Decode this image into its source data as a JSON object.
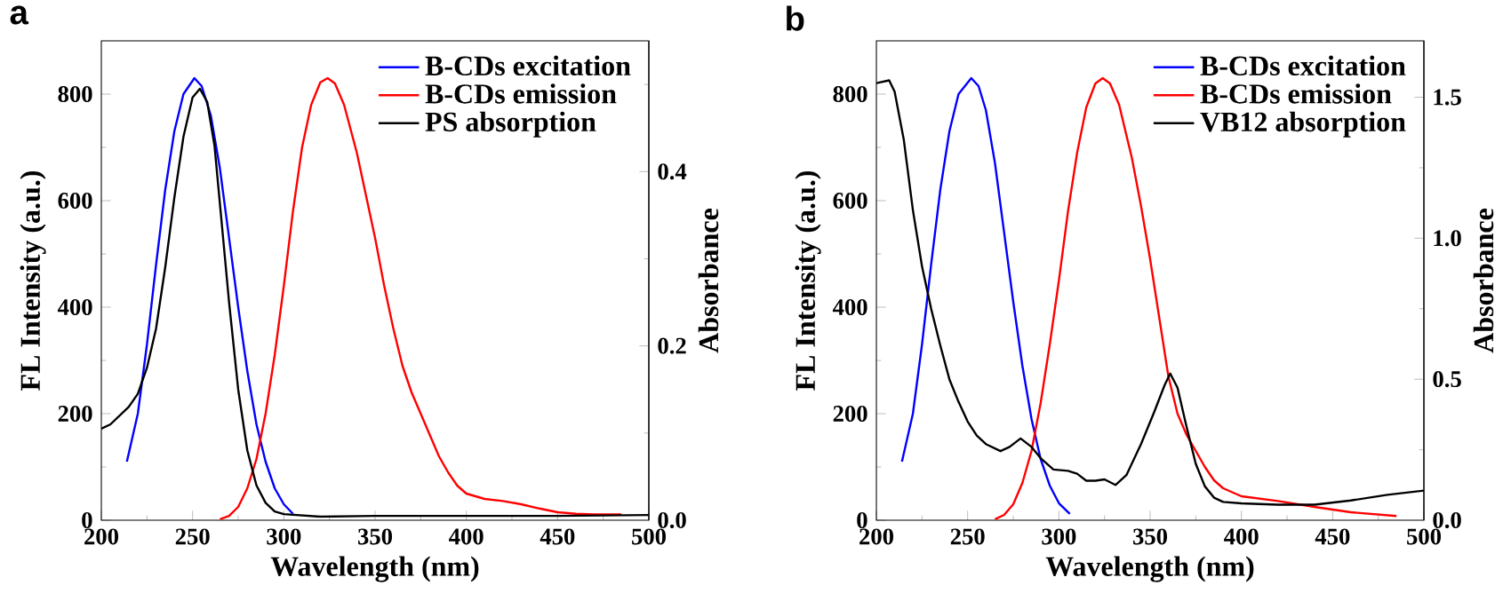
{
  "chart_data": [
    {
      "type": "line",
      "title": "a",
      "xlabel": "Wavelength (nm)",
      "ylabel": "FL Intensity (a.u.)",
      "y2label": "Absorbance",
      "legend": "top right",
      "xlim": [
        200,
        500
      ],
      "xticks": [
        200,
        {
          "value": 225,
          "label": null
        },
        250,
        {
          "value": 275,
          "label": null
        },
        300,
        {
          "value": 325,
          "label": null
        },
        350,
        {
          "value": 375,
          "label": null
        },
        400,
        {
          "value": 425,
          "label": null
        },
        450,
        {
          "value": 475,
          "label": null
        },
        500
      ],
      "ylim": [
        0,
        900
      ],
      "yticks": [
        0,
        {
          "value": 100,
          "label": null
        },
        200,
        {
          "value": 300,
          "label": null
        },
        400,
        {
          "value": 500,
          "label": null
        },
        600,
        {
          "value": 700,
          "label": null
        },
        800
      ],
      "y2lim": [
        0,
        0.55
      ],
      "y2ticks": [
        {
          "value": 0,
          "label": "0.0"
        },
        {
          "value": 0.1,
          "label": null
        },
        {
          "value": 0.2,
          "label": "0.2"
        },
        {
          "value": 0.3,
          "label": null
        },
        {
          "value": 0.4,
          "label": "0.4"
        },
        {
          "value": 0.5,
          "label": null
        }
      ],
      "series": [
        {
          "name": "B-CDs excitation",
          "color": "#0000ff",
          "x": [
            214,
            220,
            225,
            230,
            235,
            240,
            245,
            251,
            255,
            260,
            265,
            270,
            275,
            280,
            285,
            290,
            295,
            300,
            305
          ],
          "values": [
            110,
            200,
            330,
            480,
            620,
            730,
            800,
            830,
            815,
            760,
            660,
            530,
            400,
            280,
            180,
            110,
            60,
            30,
            12
          ]
        },
        {
          "name": "B-CDs emission",
          "color": "#ff0000",
          "x": [
            265,
            270,
            275,
            280,
            285,
            290,
            295,
            300,
            305,
            310,
            315,
            320,
            324,
            328,
            333,
            340,
            345,
            350,
            355,
            360,
            365,
            370,
            375,
            380,
            385,
            390,
            395,
            400,
            410,
            420,
            430,
            440,
            450,
            460,
            470,
            485
          ],
          "values": [
            2,
            8,
            25,
            60,
            115,
            200,
            310,
            440,
            580,
            700,
            780,
            822,
            830,
            820,
            780,
            690,
            610,
            530,
            440,
            360,
            290,
            240,
            200,
            160,
            120,
            90,
            65,
            50,
            40,
            36,
            30,
            22,
            15,
            12,
            11,
            11
          ]
        },
        {
          "name": "PS absorption",
          "color": "#000000",
          "axis": "y2",
          "x": [
            200,
            205,
            210,
            215,
            220,
            225,
            230,
            235,
            240,
            245,
            250,
            254,
            258,
            262,
            266,
            270,
            275,
            280,
            285,
            290,
            295,
            300,
            320,
            350,
            400,
            450,
            500
          ],
          "values": [
            0.105,
            0.11,
            0.12,
            0.13,
            0.145,
            0.175,
            0.22,
            0.29,
            0.37,
            0.44,
            0.485,
            0.495,
            0.48,
            0.43,
            0.34,
            0.25,
            0.15,
            0.08,
            0.04,
            0.02,
            0.01,
            0.007,
            0.004,
            0.005,
            0.005,
            0.005,
            0.006
          ]
        }
      ]
    },
    {
      "type": "line",
      "title": "b",
      "xlabel": "Wavelength (nm)",
      "ylabel": "FL Intensity (a.u.)",
      "y2label": "Absorbance",
      "legend": "top right",
      "xlim": [
        200,
        500
      ],
      "xticks": [
        200,
        {
          "value": 225,
          "label": null
        },
        250,
        {
          "value": 275,
          "label": null
        },
        300,
        {
          "value": 325,
          "label": null
        },
        350,
        {
          "value": 375,
          "label": null
        },
        400,
        {
          "value": 425,
          "label": null
        },
        450,
        {
          "value": 475,
          "label": null
        },
        500
      ],
      "ylim": [
        0,
        900
      ],
      "yticks": [
        0,
        {
          "value": 100,
          "label": null
        },
        200,
        {
          "value": 300,
          "label": null
        },
        400,
        {
          "value": 500,
          "label": null
        },
        600,
        {
          "value": 700,
          "label": null
        },
        800
      ],
      "y2lim": [
        0,
        1.7
      ],
      "y2ticks": [
        {
          "value": 0,
          "label": "0.0"
        },
        {
          "value": 0.25,
          "label": null
        },
        {
          "value": 0.5,
          "label": "0.5"
        },
        {
          "value": 0.75,
          "label": null
        },
        {
          "value": 1,
          "label": "1.0"
        },
        {
          "value": 1.25,
          "label": null
        },
        {
          "value": 1.5,
          "label": "1.5"
        }
      ],
      "series": [
        {
          "name": "B-CDs excitation",
          "color": "#0000ff",
          "x": [
            214,
            220,
            225,
            230,
            235,
            240,
            245,
            252,
            256,
            260,
            265,
            270,
            275,
            280,
            285,
            290,
            295,
            300,
            306
          ],
          "values": [
            110,
            200,
            330,
            480,
            620,
            730,
            800,
            830,
            815,
            770,
            670,
            540,
            410,
            290,
            190,
            115,
            65,
            32,
            12
          ]
        },
        {
          "name": "B-CDs emission",
          "color": "#ff0000",
          "x": [
            265,
            270,
            275,
            280,
            285,
            290,
            295,
            300,
            305,
            310,
            315,
            320,
            324,
            328,
            333,
            340,
            345,
            350,
            355,
            360,
            365,
            370,
            375,
            380,
            385,
            390,
            400,
            420,
            440,
            460,
            485
          ],
          "values": [
            2,
            10,
            30,
            70,
            130,
            220,
            330,
            450,
            580,
            690,
            775,
            820,
            830,
            820,
            780,
            680,
            590,
            490,
            380,
            270,
            200,
            160,
            130,
            100,
            75,
            60,
            45,
            36,
            25,
            15,
            8
          ]
        },
        {
          "name": "VB12 absorption",
          "color": "#000000",
          "axis": "y2",
          "x": [
            200,
            207,
            210,
            215,
            220,
            225,
            230,
            235,
            240,
            245,
            250,
            255,
            260,
            268,
            273,
            279,
            285,
            290,
            297,
            305,
            310,
            315,
            320,
            325,
            331,
            337,
            345,
            352,
            358,
            361,
            365,
            370,
            375,
            380,
            385,
            390,
            400,
            420,
            440,
            460,
            480,
            500
          ],
          "values": [
            1.55,
            1.56,
            1.52,
            1.35,
            1.1,
            0.9,
            0.75,
            0.62,
            0.5,
            0.42,
            0.35,
            0.3,
            0.27,
            0.245,
            0.26,
            0.29,
            0.26,
            0.22,
            0.18,
            0.175,
            0.165,
            0.14,
            0.14,
            0.145,
            0.125,
            0.16,
            0.27,
            0.38,
            0.48,
            0.52,
            0.47,
            0.33,
            0.2,
            0.12,
            0.08,
            0.065,
            0.06,
            0.055,
            0.055,
            0.07,
            0.09,
            0.105
          ]
        }
      ]
    }
  ]
}
